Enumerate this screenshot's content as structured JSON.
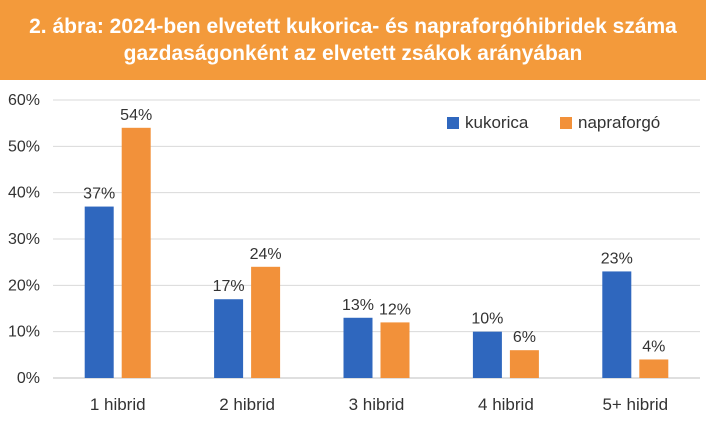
{
  "title": {
    "line1": "2. ábra: 2024-ben elvetett kukorica- és napraforgóhibridek száma",
    "line2": "gazdaságonként az elvetett zsákok arányában"
  },
  "colors": {
    "banner": "#F39A3B",
    "kukorica": "#2F67BE",
    "napraforgo": "#F2913A",
    "grid": "#D9D9D9",
    "axis": "#BFBFBF",
    "text": "#333333"
  },
  "chart_data": {
    "type": "bar",
    "title": "2. ábra: 2024-ben elvetett kukorica- és napraforgóhibridek száma gazdaságonként az elvetett zsákok arányában",
    "xlabel": "",
    "ylabel": "",
    "categories": [
      "1 hibrid",
      "2 hibrid",
      "3 hibrid",
      "4 hibrid",
      "5+ hibrid"
    ],
    "series": [
      {
        "name": "kukorica",
        "values": [
          37,
          17,
          13,
          10,
          23
        ],
        "labels": [
          "37%",
          "17%",
          "13%",
          "10%",
          "23%"
        ]
      },
      {
        "name": "napraforgó",
        "values": [
          54,
          24,
          12,
          6,
          4
        ],
        "labels": [
          "54%",
          "24%",
          "12%",
          "6%",
          "4%"
        ]
      }
    ],
    "ylim": [
      0,
      60
    ],
    "yticks": [
      "0%",
      "10%",
      "20%",
      "30%",
      "40%",
      "50%",
      "60%"
    ],
    "grid": true,
    "legend_position": "top-right"
  }
}
